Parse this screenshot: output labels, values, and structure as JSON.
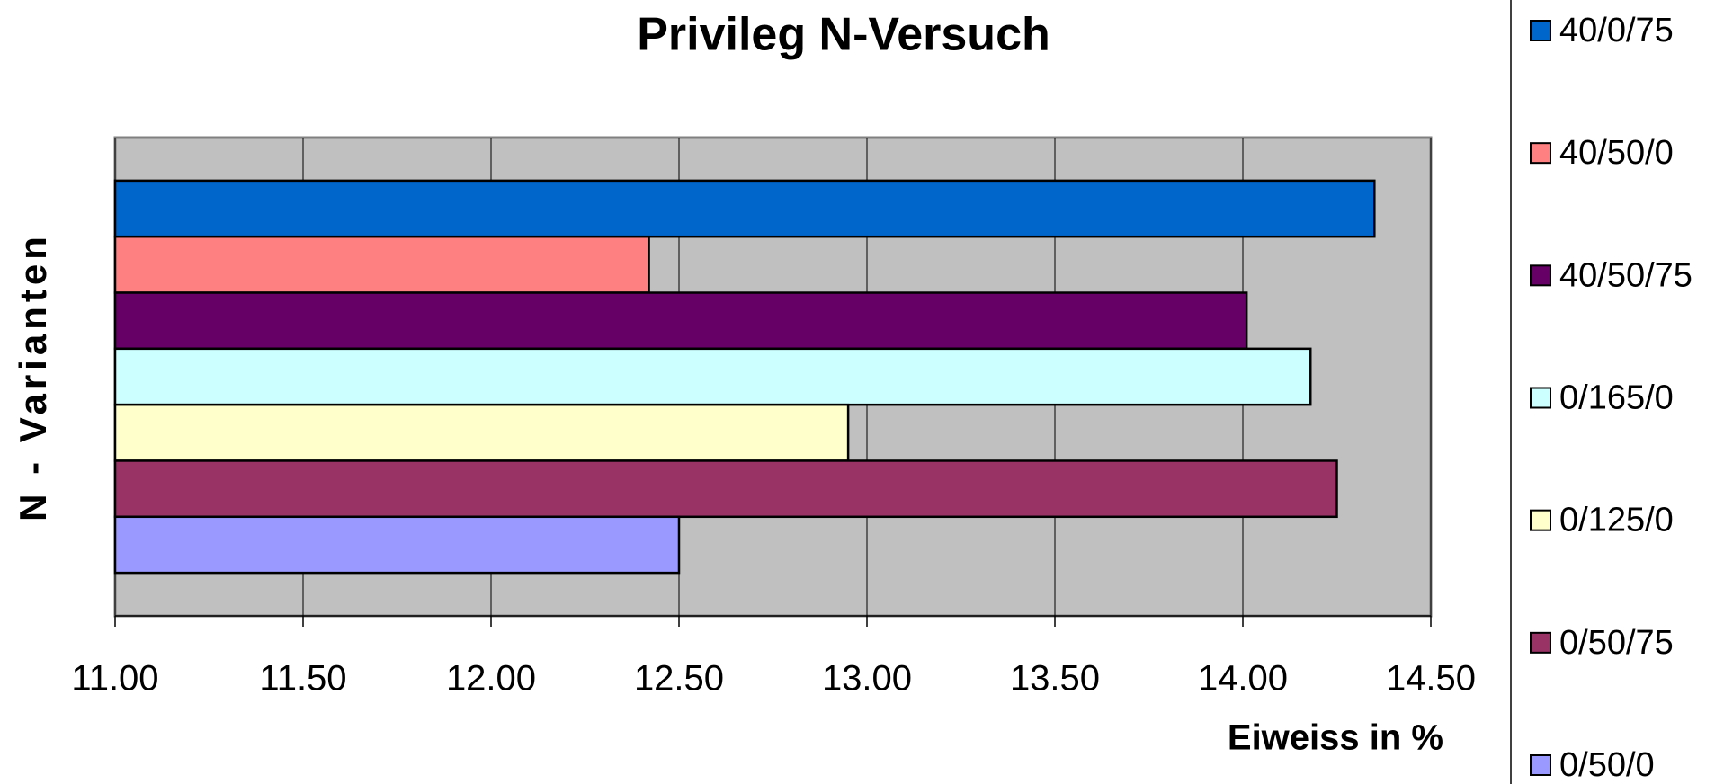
{
  "chart_data": {
    "type": "hbar",
    "title": "Privileg N-Versuch",
    "x_label": "Eiweiss in %",
    "y_label": "N - Varianten",
    "categories": [
      null
    ],
    "series": [
      {
        "name": "40/0/75",
        "color": "#0066cc",
        "values": [
          14.35
        ]
      },
      {
        "name": "40/50/0",
        "color": "#ff8080",
        "values": [
          12.42
        ]
      },
      {
        "name": "40/50/75",
        "color": "#660066",
        "values": [
          14.01
        ]
      },
      {
        "name": "0/165/0",
        "color": "#ccffff",
        "values": [
          14.18
        ]
      },
      {
        "name": "0/125/0",
        "color": "#ffffcc",
        "values": [
          12.95
        ]
      },
      {
        "name": "0/50/75",
        "color": "#993366",
        "values": [
          14.25
        ]
      },
      {
        "name": "0/50/0",
        "color": "#9999ff",
        "values": [
          12.5
        ]
      }
    ],
    "xlim": [
      11,
      14.5
    ],
    "xticks": [
      {
        "value": 11,
        "label": "11.00"
      },
      {
        "value": 11.5,
        "label": "11.50"
      },
      {
        "value": 12,
        "label": "12.00"
      },
      {
        "value": 12.5,
        "label": "12.50"
      },
      {
        "value": 13,
        "label": "13.00"
      },
      {
        "value": 13.5,
        "label": "13.50"
      },
      {
        "value": 14,
        "label": "14.00"
      },
      {
        "value": 14.5,
        "label": "14.50"
      }
    ],
    "grid": true,
    "legend": "right"
  }
}
